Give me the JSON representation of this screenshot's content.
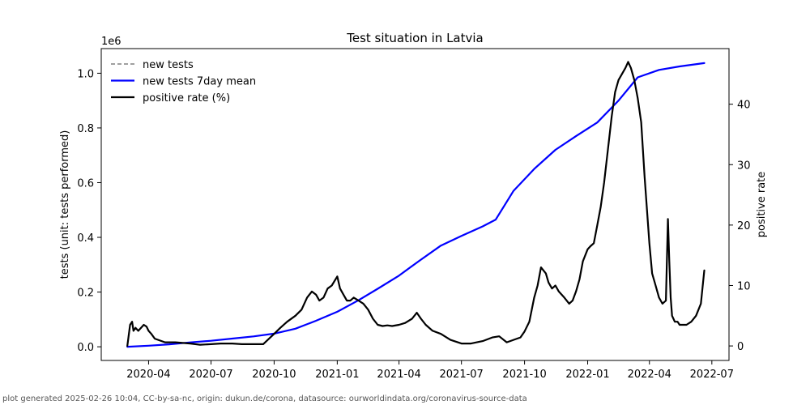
{
  "chart_data": {
    "type": "line",
    "title": "Test situation in Latvia",
    "ylabel": "tests (unit: tests performed)",
    "y2label": "positive rate",
    "y_offset_label": "1e6",
    "ylim": [
      -0.05,
      1.09
    ],
    "y2lim": [
      -2.4,
      49.2
    ],
    "xlim": [
      "2020-01-23",
      "2022-07-26"
    ],
    "x_ticks": [
      "2020-04-01",
      "2020-07-01",
      "2020-10-01",
      "2021-01-01",
      "2021-04-01",
      "2021-07-01",
      "2021-10-01",
      "2022-01-01",
      "2022-04-01",
      "2022-07-01"
    ],
    "x_tick_labels": [
      "2020-04",
      "2020-07",
      "2020-10",
      "2021-01",
      "2021-04",
      "2021-07",
      "2021-10",
      "2022-01",
      "2022-04",
      "2022-07"
    ],
    "y_ticks": [
      0.0,
      0.2,
      0.4,
      0.6,
      0.8,
      1.0
    ],
    "y_tick_labels": [
      "0.0",
      "0.2",
      "0.4",
      "0.6",
      "0.8",
      "1.0"
    ],
    "y2_ticks": [
      0,
      10,
      20,
      30,
      40
    ],
    "y2_tick_labels": [
      "0",
      "10",
      "20",
      "30",
      "40"
    ],
    "legend": {
      "placement": "upper-left",
      "entries": [
        "new tests",
        "new tests 7day mean",
        "positive rate (%)"
      ]
    },
    "colors": {
      "new_tests": "#808080",
      "mean": "#0000ff",
      "positive": "#000000"
    },
    "series": [
      {
        "name": "new tests 7day mean",
        "axis": "left",
        "x": [
          "2020-03-01",
          "2020-04-01",
          "2020-05-01",
          "2020-06-01",
          "2020-07-01",
          "2020-08-01",
          "2020-09-01",
          "2020-10-01",
          "2020-11-01",
          "2020-12-01",
          "2021-01-01",
          "2021-02-01",
          "2021-03-01",
          "2021-04-01",
          "2021-05-01",
          "2021-06-01",
          "2021-07-01",
          "2021-08-01",
          "2021-08-20",
          "2021-09-15",
          "2021-10-15",
          "2021-11-15",
          "2021-12-15",
          "2022-01-15",
          "2022-02-15",
          "2022-03-15",
          "2022-04-15",
          "2022-05-15",
          "2022-06-20"
        ],
        "y": [
          0.0,
          0.004,
          0.009,
          0.016,
          0.022,
          0.03,
          0.038,
          0.048,
          0.066,
          0.095,
          0.128,
          0.17,
          0.212,
          0.26,
          0.315,
          0.37,
          0.405,
          0.44,
          0.465,
          0.57,
          0.65,
          0.72,
          0.77,
          0.82,
          0.9,
          0.985,
          1.012,
          1.025,
          1.037
        ]
      },
      {
        "name": "positive rate (%)",
        "axis": "right",
        "x": [
          "2020-03-01",
          "2020-03-05",
          "2020-03-08",
          "2020-03-10",
          "2020-03-13",
          "2020-03-17",
          "2020-03-21",
          "2020-03-25",
          "2020-03-29",
          "2020-04-01",
          "2020-04-05",
          "2020-04-10",
          "2020-04-15",
          "2020-04-25",
          "2020-05-10",
          "2020-06-01",
          "2020-06-15",
          "2020-07-01",
          "2020-07-15",
          "2020-08-01",
          "2020-08-15",
          "2020-09-01",
          "2020-09-15",
          "2020-10-01",
          "2020-10-10",
          "2020-10-20",
          "2020-11-01",
          "2020-11-10",
          "2020-11-18",
          "2020-11-25",
          "2020-12-01",
          "2020-12-06",
          "2020-12-12",
          "2020-12-18",
          "2020-12-24",
          "2021-01-01",
          "2021-01-05",
          "2021-01-10",
          "2021-01-15",
          "2021-01-20",
          "2021-01-25",
          "2021-02-01",
          "2021-02-08",
          "2021-02-15",
          "2021-02-22",
          "2021-03-01",
          "2021-03-08",
          "2021-03-15",
          "2021-03-22",
          "2021-04-01",
          "2021-04-10",
          "2021-04-20",
          "2021-04-27",
          "2021-05-03",
          "2021-05-10",
          "2021-05-20",
          "2021-06-01",
          "2021-06-15",
          "2021-07-01",
          "2021-07-15",
          "2021-08-01",
          "2021-08-15",
          "2021-08-25",
          "2021-09-05",
          "2021-09-15",
          "2021-09-25",
          "2021-10-01",
          "2021-10-08",
          "2021-10-15",
          "2021-10-20",
          "2021-10-25",
          "2021-11-01",
          "2021-11-05",
          "2021-11-10",
          "2021-11-15",
          "2021-11-20",
          "2021-11-28",
          "2021-12-05",
          "2021-12-10",
          "2021-12-15",
          "2021-12-20",
          "2021-12-25",
          "2022-01-01",
          "2022-01-05",
          "2022-01-10",
          "2022-01-15",
          "2022-01-20",
          "2022-01-25",
          "2022-02-01",
          "2022-02-05",
          "2022-02-10",
          "2022-02-15",
          "2022-02-20",
          "2022-02-25",
          "2022-03-01",
          "2022-03-05",
          "2022-03-10",
          "2022-03-15",
          "2022-03-20",
          "2022-03-25",
          "2022-04-01",
          "2022-04-05",
          "2022-04-10",
          "2022-04-15",
          "2022-04-20",
          "2022-04-25",
          "2022-04-28",
          "2022-04-30",
          "2022-05-02",
          "2022-05-04",
          "2022-05-06",
          "2022-05-08",
          "2022-05-12",
          "2022-05-15",
          "2022-05-20",
          "2022-05-25",
          "2022-06-01",
          "2022-06-08",
          "2022-06-15",
          "2022-06-20"
        ],
        "y": [
          0,
          3.5,
          4,
          2.5,
          3,
          2.5,
          3,
          3.5,
          3.2,
          2.5,
          2,
          1.2,
          1,
          0.6,
          0.6,
          0.4,
          0.2,
          0.3,
          0.4,
          0.4,
          0.3,
          0.3,
          0.3,
          2,
          3,
          4,
          5,
          6,
          8,
          9,
          8.5,
          7.5,
          8,
          9.5,
          10,
          11.5,
          9.5,
          8.5,
          7.5,
          7.5,
          8,
          7.5,
          7,
          6,
          4.5,
          3.5,
          3.3,
          3.4,
          3.3,
          3.5,
          3.8,
          4.5,
          5.5,
          4.5,
          3.5,
          2.5,
          2.0,
          1.0,
          0.4,
          0.4,
          0.8,
          1.4,
          1.6,
          0.6,
          1.0,
          1.4,
          2.4,
          4,
          8,
          10,
          13,
          12,
          10.5,
          9.5,
          10,
          9,
          8,
          7,
          7.5,
          9,
          11,
          14,
          16,
          16.5,
          17,
          20,
          23,
          27,
          34,
          38,
          42,
          44,
          45,
          46,
          47,
          46,
          44,
          41,
          37,
          28,
          17,
          12,
          10,
          8,
          7,
          7.5,
          21,
          14,
          8,
          5,
          4.5,
          4,
          4,
          3.5,
          3.5,
          3.5,
          4,
          5,
          7,
          12.5
        ]
      }
    ]
  },
  "footer": "plot generated 2025-02-26 10:04, CC-by-sa-nc, origin: dukun.de/corona, datasource: ourworldindata.org/coronavirus-source-data"
}
